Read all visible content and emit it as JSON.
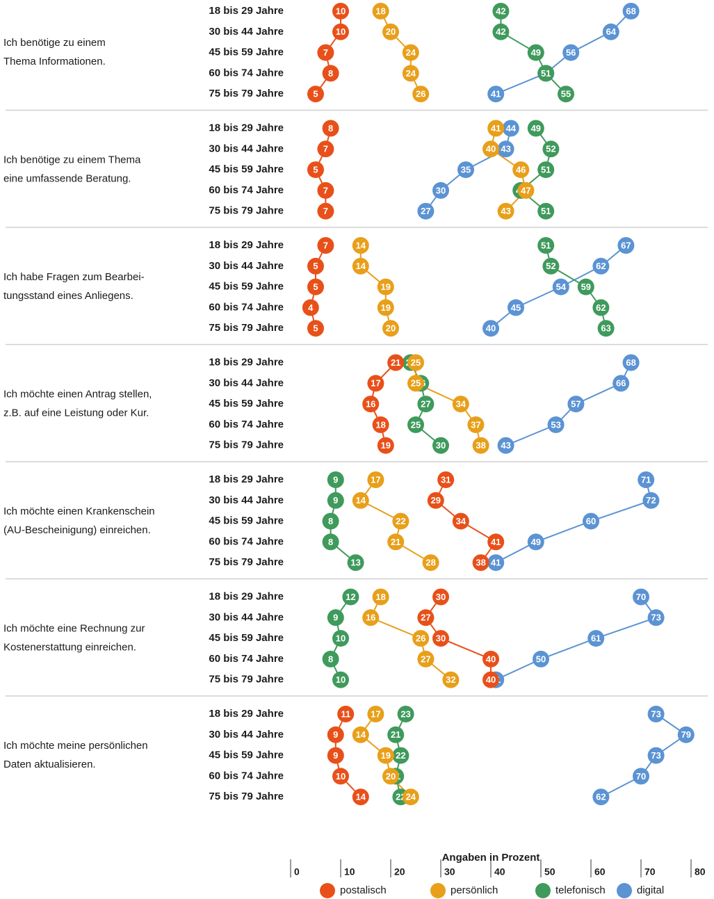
{
  "chart_data": {
    "type": "dotline",
    "categories": [
      "18 bis 29 Jahre",
      "30 bis 44 Jahre",
      "45 bis 59 Jahre",
      "60 bis 74 Jahre",
      "75 bis 79 Jahre"
    ],
    "series": [
      {
        "name": "postalisch",
        "color": "#e8501a"
      },
      {
        "name": "persönlich",
        "color": "#e89f1a"
      },
      {
        "name": "telefonisch",
        "color": "#3f9a5c"
      },
      {
        "name": "digital",
        "color": "#5b93d3"
      }
    ],
    "panels": [
      {
        "title": [
          "Ich benötige zu einem",
          "Thema Informationen."
        ],
        "series": [
          {
            "values": [
              10,
              10,
              7,
              8,
              5
            ]
          },
          {
            "values": [
              18,
              20,
              24,
              24,
              26
            ]
          },
          {
            "values": [
              42,
              42,
              49,
              51,
              55
            ]
          },
          {
            "values": [
              68,
              64,
              56,
              51,
              41
            ]
          }
        ]
      },
      {
        "title": [
          "Ich benötige zu einem Thema",
          "eine umfassende Beratung."
        ],
        "series": [
          {
            "values": [
              8,
              7,
              5,
              7,
              7
            ]
          },
          {
            "values": [
              41,
              40,
              46,
              47,
              43
            ]
          },
          {
            "values": [
              49,
              52,
              51,
              46,
              51
            ]
          },
          {
            "values": [
              44,
              43,
              35,
              30,
              27
            ]
          }
        ]
      },
      {
        "title": [
          "Ich habe Fragen zum Bearbei-",
          "tungsstand eines Anliegens."
        ],
        "series": [
          {
            "values": [
              7,
              5,
              5,
              4,
              5
            ]
          },
          {
            "values": [
              14,
              14,
              19,
              19,
              20
            ]
          },
          {
            "values": [
              51,
              52,
              59,
              62,
              63
            ]
          },
          {
            "values": [
              67,
              62,
              54,
              45,
              40
            ]
          }
        ]
      },
      {
        "title": [
          "Ich möchte einen Antrag stellen,",
          "z.B. auf eine Leistung oder Kur."
        ],
        "series": [
          {
            "values": [
              21,
              17,
              16,
              18,
              19
            ]
          },
          {
            "values": [
              25,
              25,
              34,
              37,
              38
            ]
          },
          {
            "values": [
              24,
              26,
              27,
              25,
              30
            ]
          },
          {
            "values": [
              68,
              66,
              57,
              53,
              43
            ]
          }
        ]
      },
      {
        "title": [
          "Ich möchte einen Krankenschein",
          "(AU-Bescheinigung) einreichen."
        ],
        "series": [
          {
            "values": [
              31,
              29,
              34,
              41,
              38
            ]
          },
          {
            "values": [
              17,
              14,
              22,
              21,
              28
            ]
          },
          {
            "values": [
              9,
              9,
              8,
              8,
              13
            ]
          },
          {
            "values": [
              71,
              72,
              60,
              49,
              41
            ]
          }
        ]
      },
      {
        "title": [
          "Ich möchte eine Rechnung zur",
          "Kostenerstattung einreichen."
        ],
        "series": [
          {
            "values": [
              30,
              27,
              30,
              40,
              40
            ]
          },
          {
            "values": [
              18,
              16,
              26,
              27,
              32
            ]
          },
          {
            "values": [
              12,
              9,
              10,
              8,
              10
            ]
          },
          {
            "values": [
              70,
              73,
              61,
              50,
              41
            ]
          }
        ]
      },
      {
        "title": [
          "Ich möchte meine persönlichen",
          "Daten aktualisieren."
        ],
        "series": [
          {
            "values": [
              11,
              9,
              9,
              10,
              14
            ]
          },
          {
            "values": [
              17,
              14,
              19,
              20,
              24
            ]
          },
          {
            "values": [
              23,
              21,
              22,
              21,
              22
            ]
          },
          {
            "values": [
              73,
              79,
              73,
              70,
              62
            ]
          }
        ]
      }
    ],
    "xlim": [
      0,
      80
    ],
    "xticks": [
      0,
      10,
      20,
      30,
      40,
      50,
      60,
      70,
      80
    ],
    "xlabel": "Angaben in Prozent"
  }
}
